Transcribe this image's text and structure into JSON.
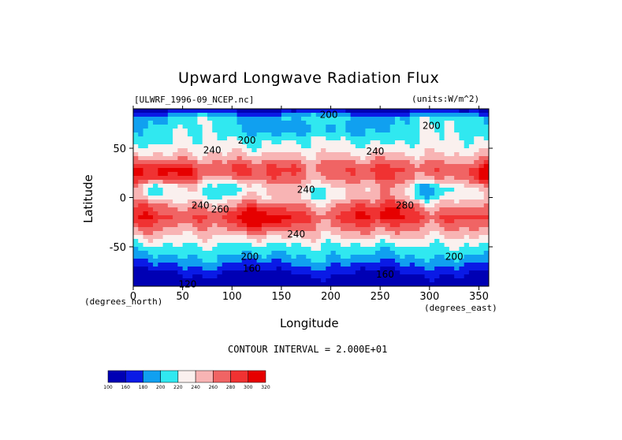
{
  "chart_data": {
    "type": "heatmap",
    "title": "Upward Longwave Radiation Flux",
    "dataset_label": "[ULWRF_1996-09_NCEP.nc]",
    "units_label": "(units:W/m^2)",
    "xlabel": "Longitude",
    "ylabel": "Latitude",
    "x_units_label": "(degrees_east)",
    "y_units_label": "(degrees_north)",
    "xlim": [
      0,
      360
    ],
    "ylim": [
      -90,
      90
    ],
    "x_ticks": [
      "0",
      "50",
      "100",
      "150",
      "200",
      "250",
      "300",
      "350"
    ],
    "x_tick_values": [
      0,
      50,
      100,
      150,
      200,
      250,
      300,
      350
    ],
    "y_ticks": [
      "50",
      "0",
      "-50"
    ],
    "y_tick_values": [
      50,
      0,
      -50
    ],
    "contour_interval_label": "CONTOUR INTERVAL = 2.000E+01",
    "contour_labels": [
      {
        "text": "200",
        "lon": 198,
        "lat": 84
      },
      {
        "text": "200",
        "lon": 302,
        "lat": 73
      },
      {
        "text": "200",
        "lon": 115,
        "lat": 58
      },
      {
        "text": "240",
        "lon": 80,
        "lat": 48
      },
      {
        "text": "240",
        "lon": 245,
        "lat": 47
      },
      {
        "text": "240",
        "lon": 175,
        "lat": 8
      },
      {
        "text": "240",
        "lon": 68,
        "lat": -8
      },
      {
        "text": "260",
        "lon": 88,
        "lat": -12
      },
      {
        "text": "280",
        "lon": 275,
        "lat": -8
      },
      {
        "text": "240",
        "lon": 165,
        "lat": -37
      },
      {
        "text": "200",
        "lon": 118,
        "lat": -60
      },
      {
        "text": "200",
        "lon": 325,
        "lat": -60
      },
      {
        "text": "160",
        "lon": 120,
        "lat": -72
      },
      {
        "text": "160",
        "lon": 255,
        "lat": -78
      },
      {
        "text": "120",
        "lon": 55,
        "lat": -88
      }
    ],
    "levels": [
      100,
      160,
      180,
      200,
      220,
      240,
      260,
      280,
      300,
      320
    ],
    "level_colors": [
      "#0000b4",
      "#0a1ae6",
      "#10a0f0",
      "#30e8f0",
      "#faf0ee",
      "#f8b4b4",
      "#f06464",
      "#f03232",
      "#e60000"
    ],
    "colorbar_labels": [
      "100",
      "160",
      "180",
      "200",
      "220",
      "240",
      "260",
      "280",
      "300",
      "320"
    ],
    "values_description_grid_note": "",
    "latitude_profile": [
      {
        "lat": 90,
        "value": 150
      },
      {
        "lat": 80,
        "value": 205
      },
      {
        "lat": 70,
        "value": 212
      },
      {
        "lat": 60,
        "value": 218
      },
      {
        "lat": 50,
        "value": 228
      },
      {
        "lat": 40,
        "value": 250
      },
      {
        "lat": 30,
        "value": 280
      },
      {
        "lat": 20,
        "value": 270
      },
      {
        "lat": 10,
        "value": 240
      },
      {
        "lat": 0,
        "value": 238
      },
      {
        "lat": -10,
        "value": 265
      },
      {
        "lat": -20,
        "value": 285
      },
      {
        "lat": -30,
        "value": 265
      },
      {
        "lat": -40,
        "value": 240
      },
      {
        "lat": -50,
        "value": 215
      },
      {
        "lat": -60,
        "value": 198
      },
      {
        "lat": -70,
        "value": 175
      },
      {
        "lat": -80,
        "value": 150
      },
      {
        "lat": -90,
        "value": 130
      }
    ]
  }
}
